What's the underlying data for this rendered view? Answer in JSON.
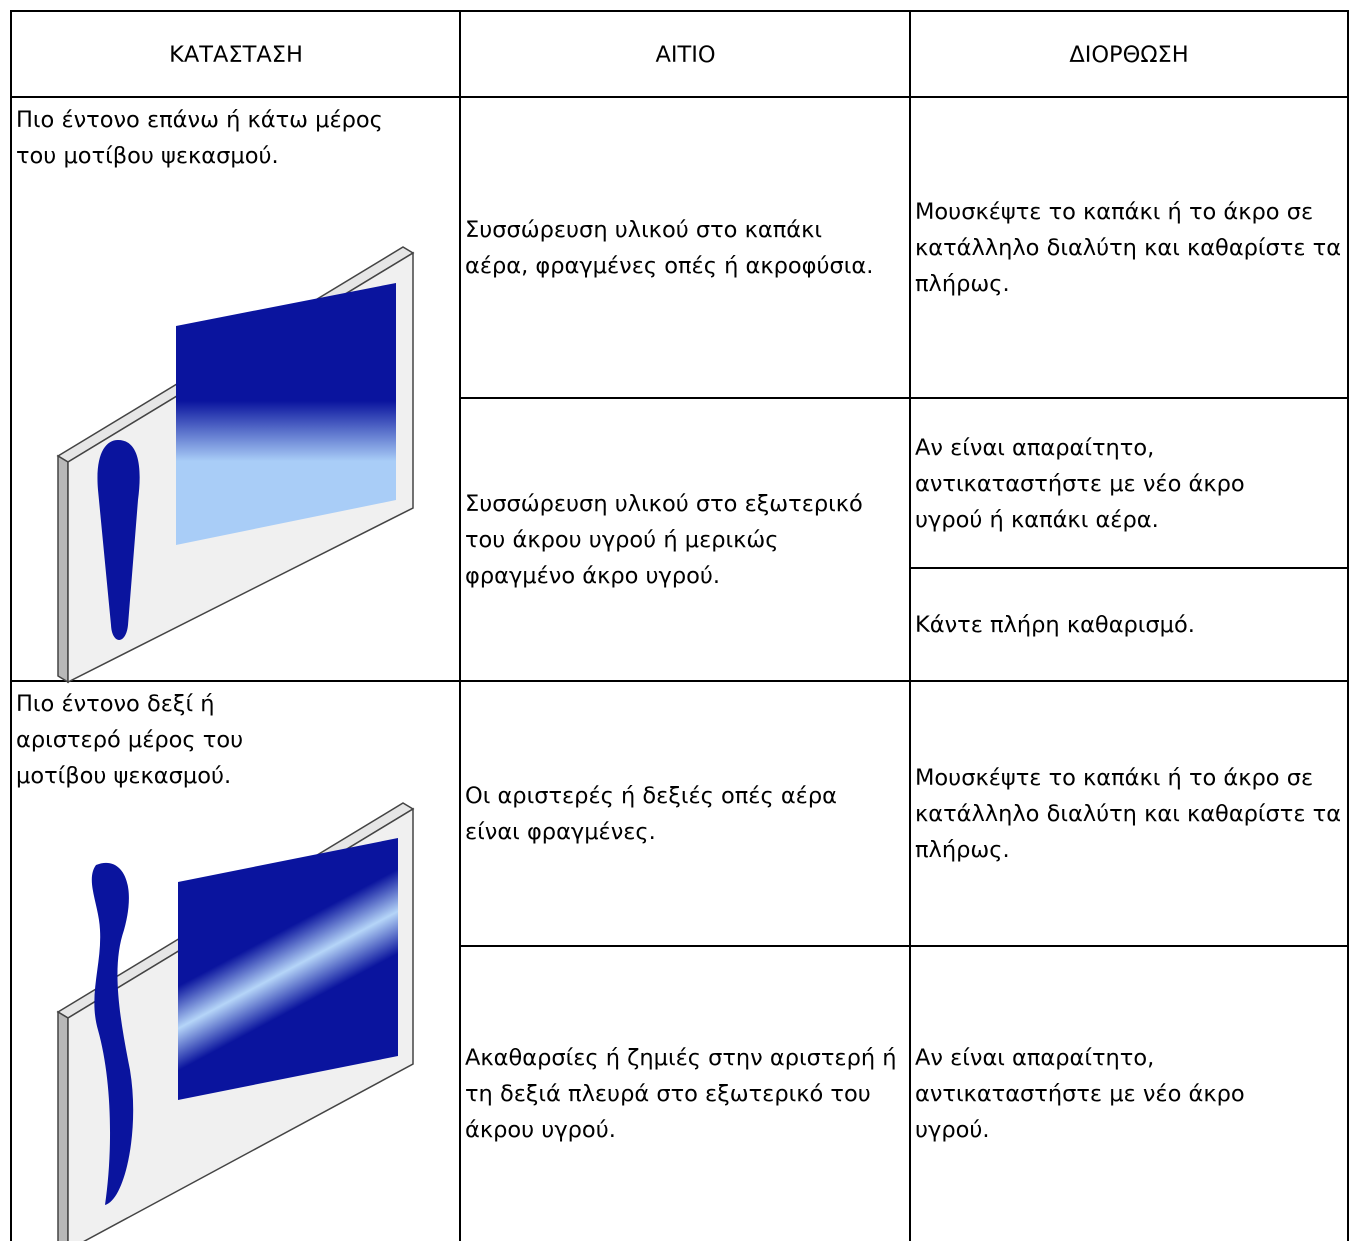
{
  "table": {
    "header": [
      "ΚΑΤΑΣΤΑΣΗ",
      "ΑΙΤΙΟ",
      "ΔΙΟΡΘΩΣΗ"
    ],
    "rows": [
      {
        "condition": "Πιο έντονο επάνω ή κάτω μέρος του μοτίβου ψεκασμού.",
        "causes": [
          {
            "cause": "Συσσώρευση υλικού στο καπάκι αέρα, φραγμένες οπές ή ακροφύσια.",
            "fixes": [
              "Μουσκέψτε το καπάκι ή το άκρο σε κατάλληλο διαλύτη και καθαρίστε τα πλήρως."
            ]
          },
          {
            "cause": "Συσσώρευση υλικού στο εξωτερικό του άκρου υγρού ή μερικώς φραγμένο άκρο υγρού.",
            "fixes": [
              "Αν είναι απαραίτητο, αντικαταστήστε με νέο άκρο υγρού ή καπάκι αέρα.",
              "Κάντε πλήρη καθαρισμό."
            ]
          }
        ]
      },
      {
        "condition": "Πιο έντονο δεξί ή αριστερό μέρος του μοτίβου ψεκασμού.",
        "causes": [
          {
            "cause": "Οι αριστερές ή δεξιές οπές αέρα είναι φραγμένες.",
            "fixes": [
              "Μουσκέψτε το καπάκι ή το άκρο σε κατάλληλο διαλύτη και καθαρίστε τα πλήρως."
            ]
          },
          {
            "cause": "Ακαθαρσίες ή ζημιές στην αριστερή ή τη δεξιά πλευρά στο εξωτερικό του άκρου υγρού.",
            "fixes": [
              "Αν είναι απαραίτητο, αντικαταστήστε με νέο άκρο υγρού."
            ]
          }
        ]
      }
    ]
  }
}
